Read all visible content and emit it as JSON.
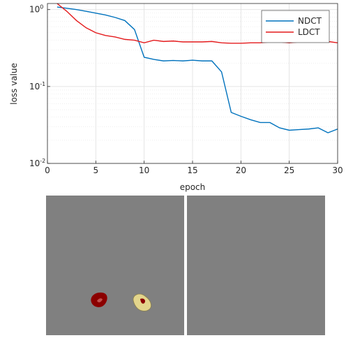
{
  "chart_data": {
    "type": "line",
    "xlabel": "epoch",
    "ylabel": "loss value",
    "x": [
      1,
      2,
      3,
      4,
      5,
      6,
      7,
      8,
      9,
      10,
      11,
      12,
      13,
      14,
      15,
      16,
      17,
      18,
      19,
      20,
      21,
      22,
      23,
      24,
      25,
      26,
      27,
      28,
      29,
      30
    ],
    "series": [
      {
        "name": "NDCT",
        "color": "#0072bd",
        "values": [
          1.08,
          1.04,
          1.0,
          0.95,
          0.9,
          0.85,
          0.79,
          0.72,
          0.55,
          0.24,
          0.225,
          0.215,
          0.218,
          0.215,
          0.22,
          0.215,
          0.215,
          0.155,
          0.046,
          0.041,
          0.037,
          0.034,
          0.034,
          0.029,
          0.027,
          0.0275,
          0.028,
          0.029,
          0.025,
          0.028
        ]
      },
      {
        "name": "LDCT",
        "color": "#e41a1c",
        "values": [
          1.2,
          0.95,
          0.72,
          0.58,
          0.5,
          0.46,
          0.44,
          0.41,
          0.4,
          0.37,
          0.4,
          0.385,
          0.39,
          0.38,
          0.38,
          0.38,
          0.385,
          0.37,
          0.365,
          0.365,
          0.37,
          0.37,
          0.38,
          0.38,
          0.37,
          0.38,
          0.385,
          0.38,
          0.385,
          0.37
        ]
      }
    ],
    "xlim": [
      0,
      30
    ],
    "xticks": [
      0,
      5,
      10,
      15,
      20,
      25,
      30
    ],
    "ylim": [
      0.01,
      1.2
    ],
    "yticks": [
      {
        "value": 0.01,
        "label": "10",
        "exponent": "-2"
      },
      {
        "value": 0.1,
        "label": "10",
        "exponent": "-1"
      },
      {
        "value": 1,
        "label": "10",
        "exponent": "0"
      }
    ],
    "log_y": true,
    "grid": true,
    "legend": "upper right"
  }
}
